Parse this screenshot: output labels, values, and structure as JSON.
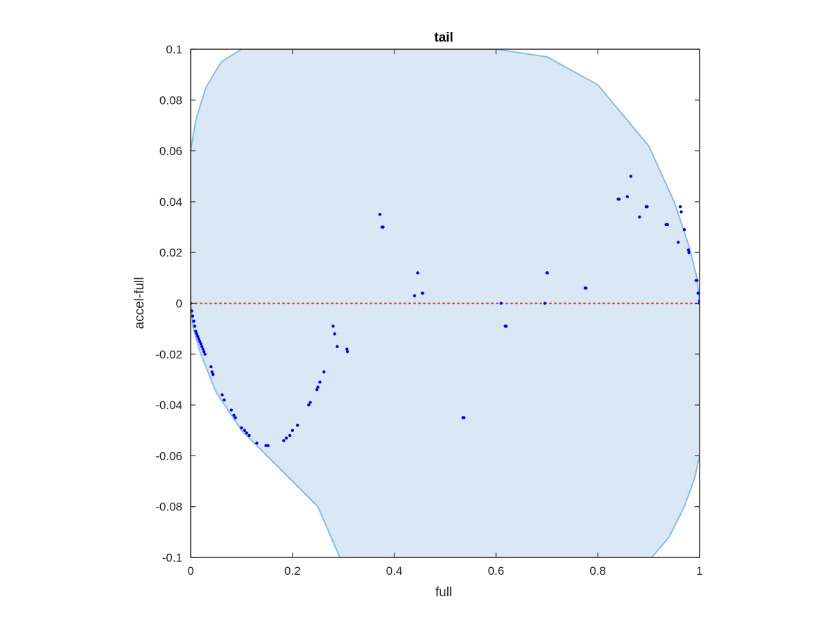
{
  "chart_data": {
    "type": "scatter",
    "title": "tail",
    "xlabel": "full",
    "ylabel": "accel-full",
    "xlim": [
      0,
      1
    ],
    "ylim": [
      -0.1,
      0.1
    ],
    "xticks": [
      "0",
      "0.2",
      "0.4",
      "0.6",
      "0.8",
      "1"
    ],
    "yticks": [
      "-0.1",
      "-0.08",
      "-0.06",
      "-0.04",
      "-0.02",
      "0",
      "0.02",
      "0.04",
      "0.06",
      "0.08",
      "0.1"
    ],
    "grid": false,
    "colors": {
      "region_fill": "#d9e8f4",
      "region_edge": "#86bde0",
      "points": "#0000ee",
      "reference_line": "#ff2a2a",
      "axis": "#262626"
    },
    "reference_line": {
      "y": 0,
      "style": "dotted"
    },
    "region": {
      "description_free": true,
      "upper_edge": {
        "x": [
          0,
          0.01,
          0.03,
          0.06,
          0.1,
          0.2,
          0.3,
          0.4,
          0.5,
          0.6,
          0.7,
          0.8,
          0.9,
          0.95,
          0.98,
          0.995,
          1
        ],
        "y": [
          0.06,
          0.072,
          0.085,
          0.095,
          0.1,
          0.1,
          0.1,
          0.1,
          0.1,
          0.1,
          0.097,
          0.086,
          0.062,
          0.04,
          0.022,
          0.01,
          0
        ]
      },
      "lower_edge": {
        "x": [
          0,
          0.005,
          0.02,
          0.05,
          0.1,
          0.15,
          0.2,
          0.25,
          0.293,
          0.4,
          0.5,
          0.6,
          0.7,
          0.8,
          0.906,
          0.94,
          0.97,
          0.99,
          1
        ],
        "y": [
          0,
          -0.01,
          -0.02,
          -0.035,
          -0.05,
          -0.06,
          -0.07,
          -0.08,
          -0.1,
          -0.1,
          -0.1,
          -0.1,
          -0.1,
          -0.1,
          -0.1,
          -0.092,
          -0.08,
          -0.069,
          -0.06
        ]
      }
    },
    "series": [
      {
        "points": [
          [
            0,
            0
          ],
          [
            0.002,
            -0.003
          ],
          [
            0.004,
            -0.005
          ],
          [
            0.006,
            -0.007
          ],
          [
            0.008,
            -0.009
          ],
          [
            0.01,
            -0.011
          ],
          [
            0.012,
            -0.012
          ],
          [
            0.014,
            -0.013
          ],
          [
            0.016,
            -0.014
          ],
          [
            0.018,
            -0.015
          ],
          [
            0.02,
            -0.016
          ],
          [
            0.022,
            -0.017
          ],
          [
            0.024,
            -0.018
          ],
          [
            0.026,
            -0.019
          ],
          [
            0.028,
            -0.02
          ],
          [
            0.04,
            -0.025
          ],
          [
            0.042,
            -0.027
          ],
          [
            0.044,
            -0.028
          ],
          [
            0.062,
            -0.036
          ],
          [
            0.066,
            -0.038
          ],
          [
            0.08,
            -0.042
          ],
          [
            0.085,
            -0.044
          ],
          [
            0.088,
            -0.045
          ],
          [
            0.1,
            -0.049
          ],
          [
            0.106,
            -0.05
          ],
          [
            0.11,
            -0.051
          ],
          [
            0.115,
            -0.052
          ],
          [
            0.13,
            -0.055
          ],
          [
            0.148,
            -0.056
          ],
          [
            0.152,
            -0.056
          ],
          [
            0.183,
            -0.054
          ],
          [
            0.188,
            -0.053
          ],
          [
            0.195,
            -0.052
          ],
          [
            0.2,
            -0.05
          ],
          [
            0.21,
            -0.048
          ],
          [
            0.232,
            -0.04
          ],
          [
            0.235,
            -0.039
          ],
          [
            0.248,
            -0.034
          ],
          [
            0.25,
            -0.033
          ],
          [
            0.254,
            -0.031
          ],
          [
            0.262,
            -0.027
          ],
          [
            0.28,
            -0.009
          ],
          [
            0.283,
            -0.012
          ],
          [
            0.288,
            -0.017
          ],
          [
            0.307,
            -0.018
          ],
          [
            0.308,
            -0.019
          ],
          [
            0.372,
            0.035
          ],
          [
            0.376,
            0.03
          ],
          [
            0.378,
            0.03
          ],
          [
            0.44,
            0.003
          ],
          [
            0.446,
            0.012
          ],
          [
            0.455,
            0.004
          ],
          [
            0.456,
            0.004
          ],
          [
            0.535,
            -0.045
          ],
          [
            0.537,
            -0.045
          ],
          [
            0.61,
            0
          ],
          [
            0.618,
            -0.009
          ],
          [
            0.62,
            -0.009
          ],
          [
            0.696,
            0
          ],
          [
            0.7,
            0.012
          ],
          [
            0.701,
            0.012
          ],
          [
            0.775,
            0.006
          ],
          [
            0.777,
            0.006
          ],
          [
            0.84,
            0.041
          ],
          [
            0.842,
            0.041
          ],
          [
            0.858,
            0.042
          ],
          [
            0.865,
            0.05
          ],
          [
            0.882,
            0.034
          ],
          [
            0.895,
            0.038
          ],
          [
            0.897,
            0.038
          ],
          [
            0.934,
            0.031
          ],
          [
            0.937,
            0.031
          ],
          [
            0.958,
            0.024
          ],
          [
            0.962,
            0.038
          ],
          [
            0.964,
            0.036
          ],
          [
            0.97,
            0.029
          ],
          [
            0.978,
            0.021
          ],
          [
            0.979,
            0.02
          ],
          [
            0.993,
            0.009
          ],
          [
            0.995,
            0.009
          ],
          [
            0.997,
            0.004
          ],
          [
            0.998,
            0.004
          ],
          [
            1,
            0.001
          ],
          [
            1,
            0
          ]
        ]
      }
    ]
  }
}
